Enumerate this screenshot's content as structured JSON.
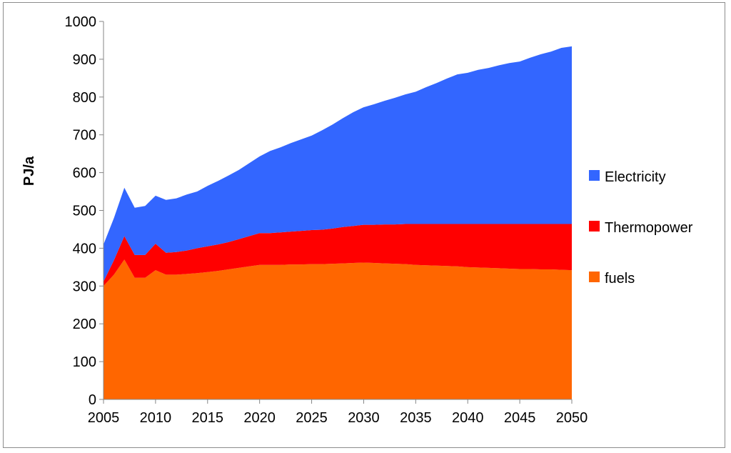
{
  "chart_data": {
    "type": "area",
    "stacked": true,
    "title": "",
    "xlabel": "",
    "ylabel": "PJ/a",
    "xlim": [
      2005,
      2050
    ],
    "ylim": [
      0,
      1000
    ],
    "x_ticks": [
      2005,
      2010,
      2015,
      2020,
      2025,
      2030,
      2035,
      2040,
      2045,
      2050
    ],
    "y_ticks": [
      0,
      100,
      200,
      300,
      400,
      500,
      600,
      700,
      800,
      900,
      1000
    ],
    "grid": false,
    "legend_position": "right",
    "x": [
      2005,
      2006,
      2007,
      2008,
      2009,
      2010,
      2011,
      2012,
      2013,
      2014,
      2015,
      2016,
      2017,
      2018,
      2019,
      2020,
      2021,
      2022,
      2023,
      2024,
      2025,
      2026,
      2027,
      2028,
      2029,
      2030,
      2031,
      2032,
      2033,
      2034,
      2035,
      2036,
      2037,
      2038,
      2039,
      2040,
      2041,
      2042,
      2043,
      2044,
      2045,
      2046,
      2047,
      2048,
      2049,
      2050
    ],
    "series": [
      {
        "name": "fuels",
        "color": "#ff6600",
        "values": [
          300,
          330,
          370,
          322,
          322,
          342,
          330,
          330,
          332,
          334,
          337,
          340,
          344,
          348,
          352,
          356,
          356,
          356,
          357,
          357,
          358,
          358,
          359,
          360,
          361,
          362,
          361,
          360,
          359,
          358,
          356,
          355,
          354,
          353,
          352,
          350,
          349,
          348,
          347,
          346,
          345,
          345,
          344,
          344,
          343,
          342
        ]
      },
      {
        "name": "Thermopower",
        "color": "#ff0000",
        "values": [
          12,
          38,
          62,
          60,
          60,
          70,
          58,
          60,
          62,
          66,
          68,
          70,
          72,
          76,
          80,
          84,
          84,
          86,
          87,
          89,
          90,
          91,
          93,
          96,
          98,
          100,
          101,
          103,
          104,
          106,
          108,
          109,
          110,
          111,
          112,
          114,
          115,
          116,
          117,
          118,
          119,
          119,
          120,
          120,
          121,
          122
        ]
      },
      {
        "name": "Electricity",
        "color": "#3366ff",
        "values": [
          98,
          112,
          128,
          125,
          130,
          127,
          140,
          142,
          148,
          150,
          160,
          168,
          176,
          183,
          193,
          203,
          217,
          225,
          234,
          242,
          250,
          263,
          275,
          288,
          301,
          311,
          319,
          327,
          335,
          343,
          350,
          362,
          373,
          385,
          396,
          400,
          408,
          413,
          420,
          426,
          430,
          440,
          449,
          456,
          466,
          470
        ]
      }
    ],
    "legend_order": [
      "Electricity",
      "Thermopower",
      "fuels"
    ]
  }
}
